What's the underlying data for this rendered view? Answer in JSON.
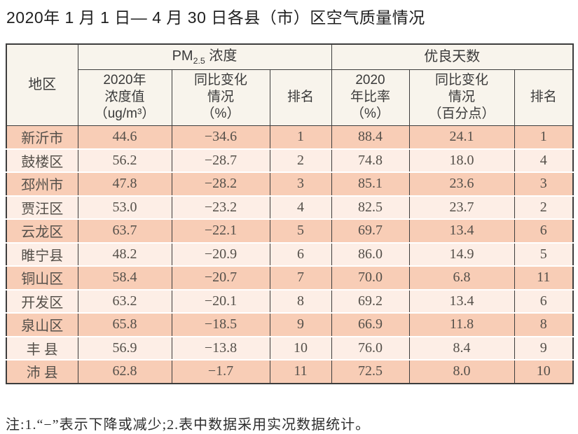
{
  "title": "2020年 1 月 1 日— 4 月 30 日各县（市）区空气质量情况",
  "table": {
    "header": {
      "region": "地区",
      "pm25_group": {
        "prefix": "PM",
        "sub": "2.5",
        "suffix": " 浓度"
      },
      "good_days_group": "优良天数",
      "sub_columns": [
        "2020年\n浓度值\n（ug/m³）",
        "同比变化\n情况\n（%）",
        "排名",
        "2020\n年比率\n（%）",
        "同比变化\n情况\n（百分点）",
        "排名"
      ]
    },
    "rows": [
      {
        "region": "新沂市",
        "values": [
          "44.6",
          "−34.6",
          "1",
          "88.4",
          "24.1",
          "1"
        ]
      },
      {
        "region": "鼓楼区",
        "values": [
          "56.2",
          "−28.7",
          "2",
          "74.8",
          "18.0",
          "4"
        ]
      },
      {
        "region": "邳州市",
        "values": [
          "47.8",
          "−28.2",
          "3",
          "85.1",
          "23.6",
          "3"
        ]
      },
      {
        "region": "贾汪区",
        "values": [
          "53.0",
          "−23.2",
          "4",
          "82.5",
          "23.7",
          "2"
        ]
      },
      {
        "region": "云龙区",
        "values": [
          "63.7",
          "−22.1",
          "5",
          "69.7",
          "13.4",
          "6"
        ]
      },
      {
        "region": "睢宁县",
        "values": [
          "48.2",
          "−20.9",
          "6",
          "86.0",
          "14.9",
          "5"
        ]
      },
      {
        "region": "铜山区",
        "values": [
          "58.4",
          "−20.7",
          "7",
          "70.0",
          "6.8",
          "11"
        ]
      },
      {
        "region": "开发区",
        "values": [
          "63.2",
          "−20.1",
          "8",
          "69.2",
          "13.4",
          "6"
        ]
      },
      {
        "region": "泉山区",
        "values": [
          "65.8",
          "−18.5",
          "9",
          "66.9",
          "11.8",
          "8"
        ]
      },
      {
        "region": "丰 县",
        "values": [
          "56.9",
          "−13.8",
          "10",
          "76.0",
          "8.4",
          "9"
        ]
      },
      {
        "region": "沛 县",
        "values": [
          "62.8",
          "−1.7",
          "11",
          "72.5",
          "8.0",
          "10"
        ]
      }
    ]
  },
  "note": "注:1.“−”表示下降或减少;2.表中数据采用实况数据统计。",
  "colors": {
    "row_odd": "#f8cdb6",
    "row_even": "#fdeee6",
    "header_bg": "#f8f4ec",
    "border": "#3d3d3d"
  }
}
